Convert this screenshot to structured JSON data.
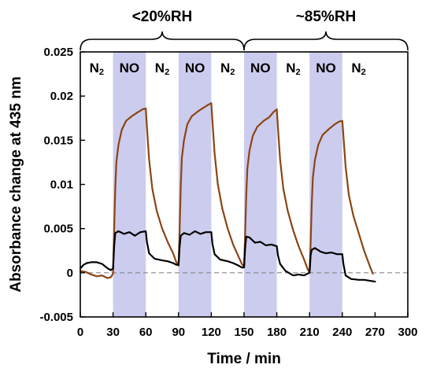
{
  "chart_data": {
    "type": "line",
    "title": "",
    "xlabel": "Time / min",
    "ylabel": "Absorbance change at 435 nm",
    "xlim": [
      0,
      300
    ],
    "ylim": [
      -0.005,
      0.025
    ],
    "x_ticks": [
      0,
      30,
      60,
      90,
      120,
      150,
      180,
      210,
      240,
      270,
      300
    ],
    "y_ticks": [
      -0.005,
      0,
      0.005,
      0.01,
      0.015,
      0.02,
      0.025
    ],
    "x_tick_labels": [
      "0",
      "30",
      "60",
      "90",
      "120",
      "150",
      "180",
      "210",
      "240",
      "270",
      "300"
    ],
    "y_tick_labels": [
      "-0.005",
      "0",
      "0.005",
      "0.01",
      "0.015",
      "0.02",
      "0.025"
    ],
    "grid": false,
    "legend": "none",
    "zero_line": {
      "y": 0,
      "style": "dashed",
      "color": "#888888"
    },
    "shaded_intervals": [
      {
        "x0": 30,
        "x1": 60
      },
      {
        "x0": 90,
        "x1": 120
      },
      {
        "x0": 150,
        "x1": 180
      },
      {
        "x0": 210,
        "x1": 240
      }
    ],
    "shade_color": "#ccccee",
    "phase_labels": [
      {
        "x": 15,
        "gas": "N",
        "sub": "2"
      },
      {
        "x": 45,
        "gas": "NO",
        "sub": ""
      },
      {
        "x": 75,
        "gas": "N",
        "sub": "2"
      },
      {
        "x": 105,
        "gas": "NO",
        "sub": ""
      },
      {
        "x": 135,
        "gas": "N",
        "sub": "2"
      },
      {
        "x": 165,
        "gas": "NO",
        "sub": ""
      },
      {
        "x": 195,
        "gas": "N",
        "sub": "2"
      },
      {
        "x": 225,
        "gas": "NO",
        "sub": ""
      },
      {
        "x": 255,
        "gas": "N",
        "sub": "2"
      }
    ],
    "humidity_brackets": [
      {
        "label": "<20%RH",
        "x0": 0,
        "x1": 150
      },
      {
        "label": "~85%RH",
        "x0": 150,
        "x1": 300
      }
    ],
    "series": [
      {
        "color": "#8b4513",
        "x": [
          0,
          5,
          10,
          15,
          20,
          25,
          28,
          30,
          31,
          32,
          33,
          35,
          38,
          42,
          48,
          53,
          57,
          60,
          61,
          63,
          66,
          70,
          75,
          80,
          85,
          88,
          90,
          91,
          92,
          93,
          95,
          98,
          102,
          108,
          113,
          117,
          120,
          121,
          123,
          126,
          130,
          135,
          140,
          145,
          148,
          150,
          151,
          152,
          153,
          155,
          158,
          162,
          168,
          173,
          177,
          180,
          181,
          183,
          186,
          190,
          195,
          200,
          205,
          208,
          210,
          211,
          212,
          213,
          215,
          218,
          222,
          228,
          233,
          237,
          240,
          241,
          243,
          246,
          250,
          255,
          260,
          265,
          268
        ],
        "y": [
          0.0002,
          0.0001,
          -0.0002,
          -0.0004,
          -0.0003,
          -0.0006,
          -0.0005,
          -0.0001,
          0.005,
          0.0095,
          0.0125,
          0.0145,
          0.0162,
          0.0172,
          0.0178,
          0.0182,
          0.0185,
          0.0186,
          0.0165,
          0.0128,
          0.0095,
          0.007,
          0.005,
          0.0035,
          0.0022,
          0.0012,
          0.0008,
          0.005,
          0.0098,
          0.013,
          0.015,
          0.0168,
          0.0177,
          0.0183,
          0.0187,
          0.019,
          0.0192,
          0.0172,
          0.0135,
          0.01,
          0.0073,
          0.005,
          0.0032,
          0.0018,
          0.001,
          0.0007,
          0.0045,
          0.0088,
          0.0118,
          0.0138,
          0.0155,
          0.0165,
          0.0172,
          0.0176,
          0.0182,
          0.0185,
          0.0165,
          0.0128,
          0.0095,
          0.007,
          0.0048,
          0.003,
          0.0015,
          0.0005,
          0.0,
          0.0035,
          0.0078,
          0.0108,
          0.0128,
          0.0145,
          0.0156,
          0.0163,
          0.0168,
          0.0171,
          0.0172,
          0.0155,
          0.012,
          0.0088,
          0.0065,
          0.0045,
          0.0025,
          0.0008,
          -0.0001
        ]
      },
      {
        "color": "#000000",
        "x": [
          0,
          3,
          6,
          10,
          15,
          20,
          25,
          28,
          30,
          31,
          32,
          35,
          40,
          45,
          50,
          55,
          60,
          61,
          63,
          68,
          75,
          80,
          85,
          88,
          90,
          91,
          92,
          95,
          100,
          105,
          110,
          115,
          120,
          121,
          123,
          128,
          135,
          140,
          145,
          148,
          150,
          151,
          152,
          155,
          160,
          165,
          170,
          175,
          180,
          181,
          183,
          188,
          195,
          200,
          205,
          208,
          210,
          211,
          212,
          215,
          220,
          225,
          230,
          235,
          240,
          241,
          243,
          248,
          255,
          260,
          265,
          270
        ],
        "y": [
          0.0005,
          0.0009,
          0.0011,
          0.0012,
          0.0012,
          0.001,
          0.0005,
          0.0003,
          0.0005,
          0.003,
          0.0045,
          0.0047,
          0.0044,
          0.0046,
          0.0042,
          0.0046,
          0.0047,
          0.0035,
          0.0022,
          0.0016,
          0.0014,
          0.0013,
          0.0011,
          0.0009,
          0.0009,
          0.003,
          0.0042,
          0.0045,
          0.0043,
          0.0047,
          0.0044,
          0.0046,
          0.0046,
          0.0033,
          0.0021,
          0.0015,
          0.0013,
          0.0011,
          0.0008,
          0.0006,
          0.0006,
          0.0028,
          0.0041,
          0.004,
          0.0034,
          0.0035,
          0.0031,
          0.0032,
          0.003,
          0.002,
          0.001,
          0.0002,
          -0.0003,
          -0.0002,
          -0.0003,
          -0.0001,
          0.0,
          0.002,
          0.0026,
          0.0028,
          0.0024,
          0.0022,
          0.0023,
          0.0021,
          0.0021,
          0.001,
          -0.0003,
          -0.0007,
          -0.0008,
          -0.0008,
          -0.0009,
          -0.001
        ]
      }
    ]
  }
}
